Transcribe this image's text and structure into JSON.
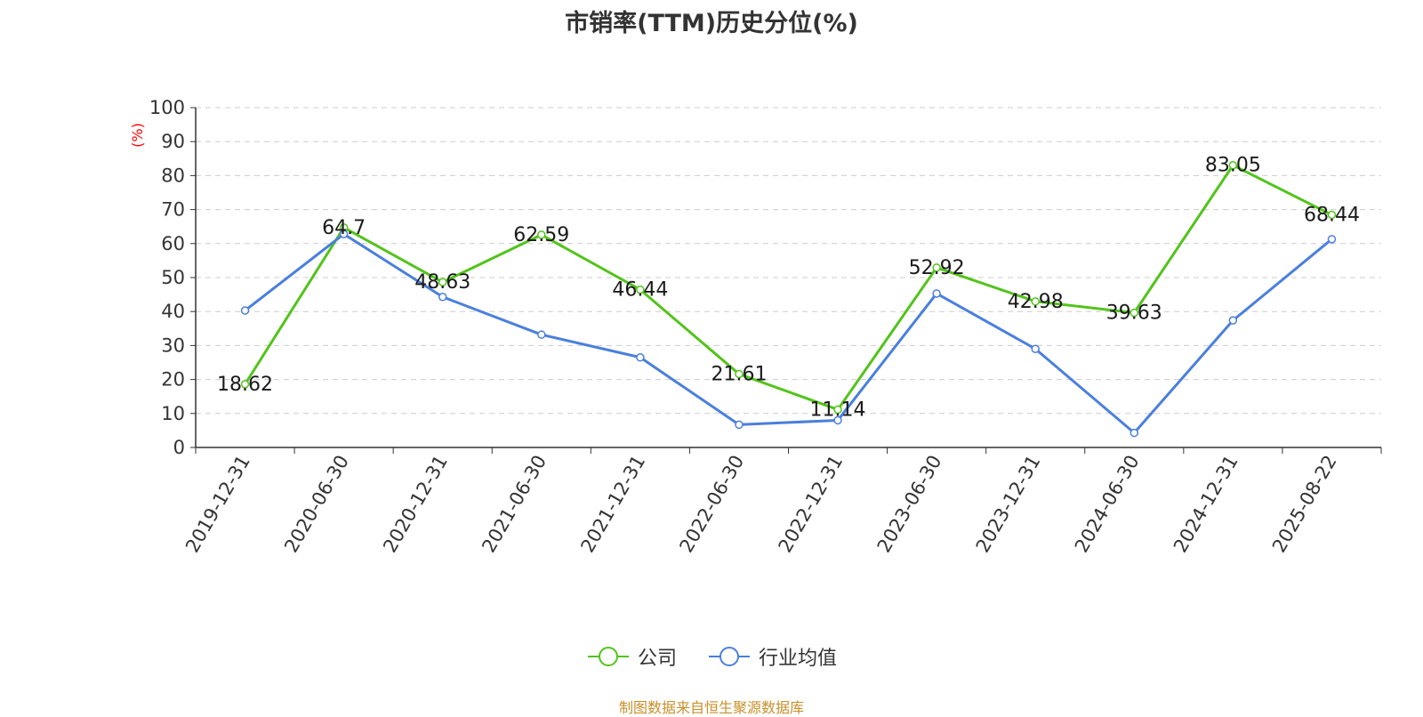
{
  "chart_data": {
    "type": "line",
    "title": "市销率(TTM)历史分位(%)",
    "ylabel": "(%)",
    "xlabel": "",
    "ylim": [
      0,
      100
    ],
    "yticks": [
      0,
      10,
      20,
      30,
      40,
      50,
      60,
      70,
      80,
      90,
      100
    ],
    "grid": true,
    "legend_position": "bottom",
    "categories": [
      "2019-12-31",
      "2020-06-30",
      "2020-12-31",
      "2021-06-30",
      "2021-12-31",
      "2022-06-30",
      "2022-12-31",
      "2023-06-30",
      "2023-12-31",
      "2024-06-30",
      "2024-12-31",
      "2025-08-22"
    ],
    "series": [
      {
        "name": "公司",
        "color": "#52c41a",
        "values": [
          18.62,
          64.7,
          48.63,
          62.59,
          46.44,
          21.61,
          11.14,
          52.92,
          42.98,
          39.63,
          83.05,
          68.44
        ],
        "labels": [
          "18.62",
          "64.7",
          "48.63",
          "62.59",
          "46.44",
          "21.61",
          "11.14",
          "52.92",
          "42.98",
          "39.63",
          "83.05",
          "68.44"
        ]
      },
      {
        "name": "行业均值",
        "color": "#4a7fde",
        "values": [
          40.3,
          62.8,
          44.3,
          33.2,
          26.5,
          6.7,
          8.0,
          45.3,
          29.0,
          4.3,
          37.4,
          61.3
        ]
      }
    ]
  },
  "source": "制图数据来自恒生聚源数据库"
}
